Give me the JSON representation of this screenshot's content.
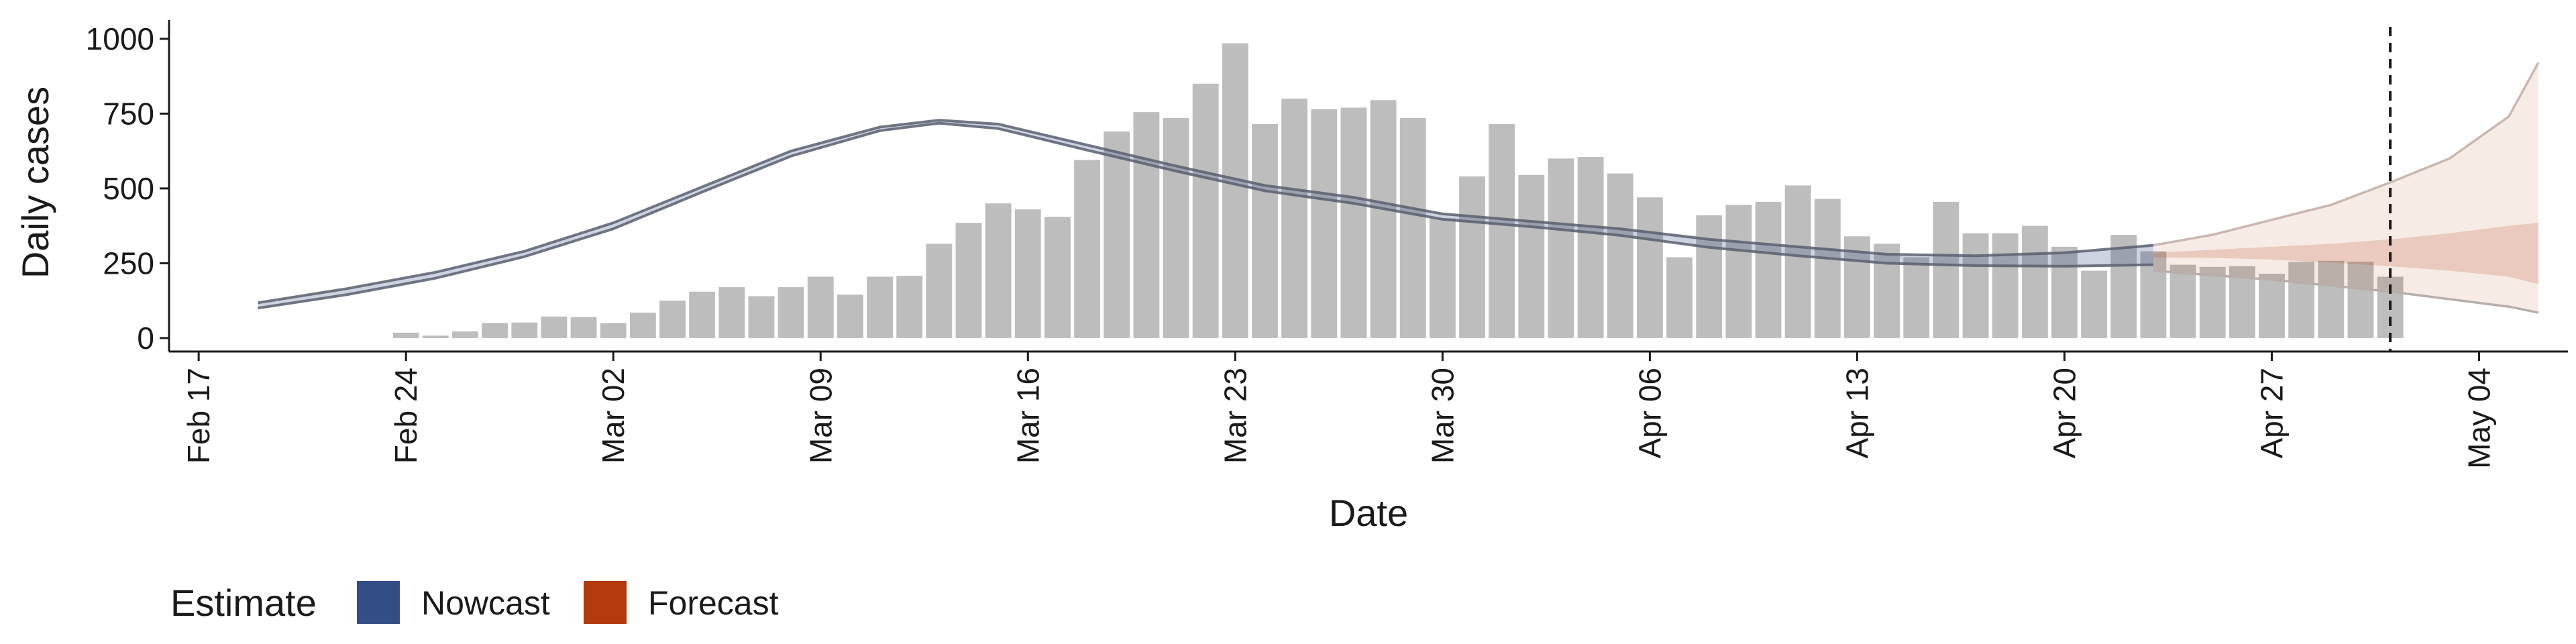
{
  "chart_data": {
    "type": "bar",
    "xlabel": "Date",
    "ylabel": "Daily cases",
    "ylim": [
      -45,
      1040
    ],
    "yticks": [
      0,
      250,
      500,
      750,
      1000
    ],
    "xlim": [
      "2020-02-16",
      "2020-05-07"
    ],
    "xticks": [
      {
        "date": "2020-02-17",
        "label": "Feb 17"
      },
      {
        "date": "2020-02-24",
        "label": "Feb 24"
      },
      {
        "date": "2020-03-02",
        "label": "Mar 02"
      },
      {
        "date": "2020-03-09",
        "label": "Mar 09"
      },
      {
        "date": "2020-03-16",
        "label": "Mar 16"
      },
      {
        "date": "2020-03-23",
        "label": "Mar 23"
      },
      {
        "date": "2020-03-30",
        "label": "Mar 30"
      },
      {
        "date": "2020-04-06",
        "label": "Apr 06"
      },
      {
        "date": "2020-04-13",
        "label": "Apr 13"
      },
      {
        "date": "2020-04-20",
        "label": "Apr 20"
      },
      {
        "date": "2020-04-27",
        "label": "Apr 27"
      },
      {
        "date": "2020-05-04",
        "label": "May 04"
      }
    ],
    "reported_cases": {
      "start_date": "2020-02-24",
      "values": [
        18,
        8,
        22,
        50,
        52,
        72,
        70,
        50,
        85,
        125,
        155,
        170,
        140,
        170,
        205,
        145,
        205,
        208,
        315,
        385,
        450,
        430,
        405,
        595,
        690,
        755,
        735,
        850,
        985,
        715,
        800,
        765,
        770,
        795,
        735,
        400,
        540,
        715,
        545,
        600,
        605,
        550,
        470,
        270,
        410,
        445,
        455,
        510,
        465,
        340,
        315,
        270,
        455,
        350,
        350,
        375,
        305,
        225,
        345,
        290,
        245,
        238,
        240,
        215,
        255,
        258,
        255,
        205
      ],
      "color": "#bdbdbd"
    },
    "nowcast": {
      "color": "#3a5088",
      "dates": [
        "2020-02-19",
        "2020-02-22",
        "2020-02-25",
        "2020-02-28",
        "2020-03-02",
        "2020-03-05",
        "2020-03-08",
        "2020-03-11",
        "2020-03-13",
        "2020-03-15",
        "2020-03-18",
        "2020-03-21",
        "2020-03-24",
        "2020-03-27",
        "2020-03-30",
        "2020-04-02",
        "2020-04-05",
        "2020-04-08",
        "2020-04-11",
        "2020-04-14",
        "2020-04-17",
        "2020-04-20",
        "2020-04-23"
      ],
      "upper": [
        118,
        165,
        220,
        290,
        385,
        505,
        625,
        705,
        728,
        715,
        645,
        575,
        510,
        470,
        415,
        390,
        365,
        330,
        305,
        280,
        275,
        285,
        310
      ],
      "lower": [
        100,
        145,
        200,
        272,
        365,
        488,
        608,
        693,
        718,
        700,
        628,
        558,
        492,
        450,
        397,
        372,
        343,
        303,
        275,
        250,
        242,
        240,
        245
      ]
    },
    "forecast": {
      "color": "#b33a0c",
      "dates": [
        "2020-04-23",
        "2020-04-25",
        "2020-04-27",
        "2020-04-29",
        "2020-05-01",
        "2020-05-03",
        "2020-05-05",
        "2020-05-06"
      ],
      "outer_upper": [
        310,
        345,
        395,
        445,
        520,
        600,
        740,
        920
      ],
      "inner_upper": [
        285,
        295,
        305,
        315,
        330,
        350,
        375,
        385
      ],
      "inner_lower": [
        270,
        268,
        262,
        252,
        240,
        225,
        205,
        180
      ],
      "outer_lower": [
        225,
        210,
        195,
        175,
        155,
        130,
        105,
        85
      ]
    },
    "date_marker": "2020-05-01",
    "legend": {
      "title": "Estimate",
      "position": "bottom-left",
      "items": [
        {
          "label": "Nowcast",
          "color": "#334d87"
        },
        {
          "label": "Forecast",
          "color": "#b33a0c"
        }
      ]
    }
  }
}
